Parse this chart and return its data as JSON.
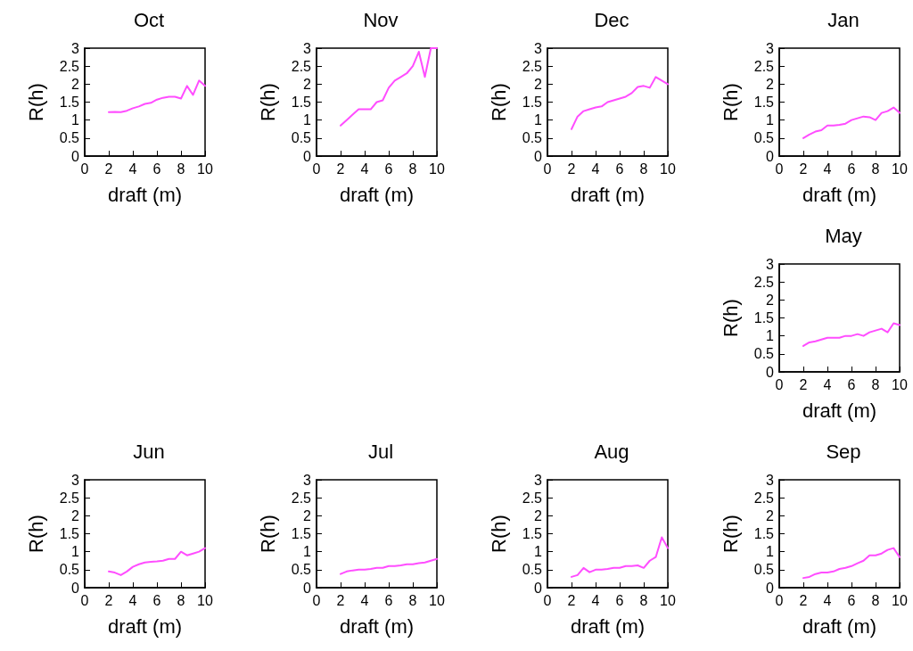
{
  "chart_data": [
    {
      "type": "line",
      "title": "Oct",
      "xlabel": "draft (m)",
      "ylabel": "R(h)",
      "xlim": [
        0,
        10
      ],
      "xticks": [
        0,
        2,
        4,
        6,
        8,
        10
      ],
      "ylim": [
        0,
        3
      ],
      "yticks": [
        0,
        0.5,
        1,
        1.5,
        2,
        2.5,
        3
      ],
      "grid": false,
      "x": [
        2,
        2.5,
        3,
        3.5,
        4,
        4.5,
        5,
        5.5,
        6,
        6.5,
        7,
        7.5,
        8,
        8.5,
        9,
        9.5,
        10
      ],
      "series": [
        {
          "color": "#ff4dff",
          "values": [
            1.22,
            1.23,
            1.22,
            1.26,
            1.33,
            1.38,
            1.45,
            1.48,
            1.57,
            1.62,
            1.65,
            1.65,
            1.6,
            1.95,
            1.7,
            2.1,
            1.95
          ]
        }
      ]
    },
    {
      "type": "line",
      "title": "Nov",
      "xlabel": "draft (m)",
      "ylabel": "R(h)",
      "xlim": [
        0,
        10
      ],
      "xticks": [
        0,
        2,
        4,
        6,
        8,
        10
      ],
      "ylim": [
        0,
        3
      ],
      "yticks": [
        0,
        0.5,
        1,
        1.5,
        2,
        2.5,
        3
      ],
      "grid": false,
      "x": [
        2,
        2.5,
        3,
        3.5,
        4,
        4.5,
        5,
        5.5,
        6,
        6.5,
        7,
        7.5,
        8,
        8.5,
        9,
        9.5,
        10
      ],
      "series": [
        {
          "color": "#ff4dff",
          "values": [
            0.85,
            1.0,
            1.15,
            1.3,
            1.3,
            1.3,
            1.5,
            1.55,
            1.9,
            2.1,
            2.2,
            2.3,
            2.5,
            2.9,
            2.2,
            3.0,
            3.0
          ]
        }
      ]
    },
    {
      "type": "line",
      "title": "Dec",
      "xlabel": "draft (m)",
      "ylabel": "R(h)",
      "xlim": [
        0,
        10
      ],
      "xticks": [
        0,
        2,
        4,
        6,
        8,
        10
      ],
      "ylim": [
        0,
        3
      ],
      "yticks": [
        0,
        0.5,
        1,
        1.5,
        2,
        2.5,
        3
      ],
      "grid": false,
      "x": [
        2,
        2.5,
        3,
        3.5,
        4,
        4.5,
        5,
        5.5,
        6,
        6.5,
        7,
        7.5,
        8,
        8.5,
        9,
        9.5,
        10
      ],
      "series": [
        {
          "color": "#ff4dff",
          "values": [
            0.75,
            1.1,
            1.25,
            1.3,
            1.35,
            1.38,
            1.5,
            1.55,
            1.6,
            1.65,
            1.75,
            1.92,
            1.95,
            1.9,
            2.2,
            2.1,
            2.0
          ]
        }
      ]
    },
    {
      "type": "line",
      "title": "Jan",
      "xlabel": "draft (m)",
      "ylabel": "R(h)",
      "xlim": [
        0,
        10
      ],
      "xticks": [
        0,
        2,
        4,
        6,
        8,
        10
      ],
      "ylim": [
        0,
        3
      ],
      "yticks": [
        0,
        0.5,
        1,
        1.5,
        2,
        2.5,
        3
      ],
      "grid": false,
      "x": [
        2,
        2.5,
        3,
        3.5,
        4,
        4.5,
        5,
        5.5,
        6,
        6.5,
        7,
        7.5,
        8,
        8.5,
        9,
        9.5,
        10
      ],
      "series": [
        {
          "color": "#ff4dff",
          "values": [
            0.5,
            0.6,
            0.68,
            0.72,
            0.85,
            0.85,
            0.87,
            0.9,
            1.0,
            1.05,
            1.1,
            1.08,
            1.0,
            1.2,
            1.25,
            1.35,
            1.2
          ]
        }
      ]
    },
    {
      "type": "line",
      "title": "May",
      "xlabel": "draft (m)",
      "ylabel": "R(h)",
      "xlim": [
        0,
        10
      ],
      "xticks": [
        0,
        2,
        4,
        6,
        8,
        10
      ],
      "ylim": [
        0,
        3
      ],
      "yticks": [
        0,
        0.5,
        1,
        1.5,
        2,
        2.5,
        3
      ],
      "grid": false,
      "x": [
        2,
        2.5,
        3,
        3.5,
        4,
        4.5,
        5,
        5.5,
        6,
        6.5,
        7,
        7.5,
        8,
        8.5,
        9,
        9.5,
        10
      ],
      "series": [
        {
          "color": "#ff4dff",
          "values": [
            0.72,
            0.82,
            0.85,
            0.9,
            0.95,
            0.95,
            0.95,
            1.0,
            1.0,
            1.05,
            1.0,
            1.1,
            1.15,
            1.2,
            1.1,
            1.35,
            1.3
          ]
        }
      ]
    },
    {
      "type": "line",
      "title": "Jun",
      "xlabel": "draft (m)",
      "ylabel": "R(h)",
      "xlim": [
        0,
        10
      ],
      "xticks": [
        0,
        2,
        4,
        6,
        8,
        10
      ],
      "ylim": [
        0,
        3
      ],
      "yticks": [
        0,
        0.5,
        1,
        1.5,
        2,
        2.5,
        3
      ],
      "grid": false,
      "x": [
        2,
        2.5,
        3,
        3.5,
        4,
        4.5,
        5,
        5.5,
        6,
        6.5,
        7,
        7.5,
        8,
        8.5,
        9,
        9.5,
        10
      ],
      "series": [
        {
          "color": "#ff4dff",
          "values": [
            0.45,
            0.42,
            0.35,
            0.45,
            0.58,
            0.65,
            0.7,
            0.72,
            0.73,
            0.75,
            0.8,
            0.8,
            1.0,
            0.9,
            0.95,
            1.0,
            1.1
          ]
        }
      ]
    },
    {
      "type": "line",
      "title": "Jul",
      "xlabel": "draft (m)",
      "ylabel": "R(h)",
      "xlim": [
        0,
        10
      ],
      "xticks": [
        0,
        2,
        4,
        6,
        8,
        10
      ],
      "ylim": [
        0,
        3
      ],
      "yticks": [
        0,
        0.5,
        1,
        1.5,
        2,
        2.5,
        3
      ],
      "grid": false,
      "x": [
        2,
        2.5,
        3,
        3.5,
        4,
        4.5,
        5,
        5.5,
        6,
        6.5,
        7,
        7.5,
        8,
        8.5,
        9,
        9.5,
        10
      ],
      "series": [
        {
          "color": "#ff4dff",
          "values": [
            0.38,
            0.45,
            0.48,
            0.5,
            0.5,
            0.52,
            0.55,
            0.55,
            0.6,
            0.6,
            0.62,
            0.65,
            0.65,
            0.68,
            0.7,
            0.75,
            0.8
          ]
        }
      ]
    },
    {
      "type": "line",
      "title": "Aug",
      "xlabel": "draft (m)",
      "ylabel": "R(h)",
      "xlim": [
        0,
        10
      ],
      "xticks": [
        0,
        2,
        4,
        6,
        8,
        10
      ],
      "ylim": [
        0,
        3
      ],
      "yticks": [
        0,
        0.5,
        1,
        1.5,
        2,
        2.5,
        3
      ],
      "grid": false,
      "x": [
        2,
        2.5,
        3,
        3.5,
        4,
        4.5,
        5,
        5.5,
        6,
        6.5,
        7,
        7.5,
        8,
        8.5,
        9,
        9.5,
        10
      ],
      "series": [
        {
          "color": "#ff4dff",
          "values": [
            0.3,
            0.35,
            0.55,
            0.43,
            0.5,
            0.5,
            0.52,
            0.55,
            0.55,
            0.6,
            0.6,
            0.62,
            0.55,
            0.75,
            0.85,
            1.4,
            1.1
          ]
        }
      ]
    },
    {
      "type": "line",
      "title": "Sep",
      "xlabel": "draft (m)",
      "ylabel": "R(h)",
      "xlim": [
        0,
        10
      ],
      "xticks": [
        0,
        2,
        4,
        6,
        8,
        10
      ],
      "ylim": [
        0,
        3
      ],
      "yticks": [
        0,
        0.5,
        1,
        1.5,
        2,
        2.5,
        3
      ],
      "grid": false,
      "x": [
        2,
        2.5,
        3,
        3.5,
        4,
        4.5,
        5,
        5.5,
        6,
        6.5,
        7,
        7.5,
        8,
        8.5,
        9,
        9.5,
        10
      ],
      "series": [
        {
          "color": "#ff4dff",
          "values": [
            0.27,
            0.3,
            0.38,
            0.42,
            0.42,
            0.45,
            0.52,
            0.55,
            0.6,
            0.68,
            0.75,
            0.9,
            0.9,
            0.95,
            1.05,
            1.1,
            0.85
          ]
        }
      ]
    }
  ]
}
